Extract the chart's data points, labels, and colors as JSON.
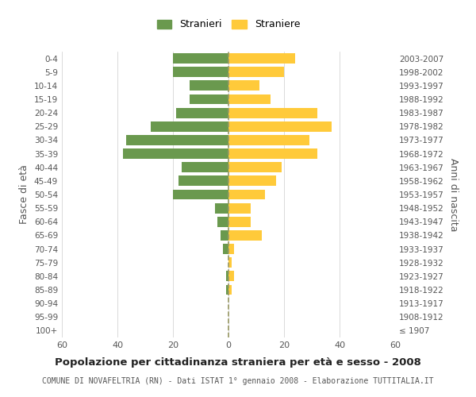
{
  "age_groups": [
    "100+",
    "95-99",
    "90-94",
    "85-89",
    "80-84",
    "75-79",
    "70-74",
    "65-69",
    "60-64",
    "55-59",
    "50-54",
    "45-49",
    "40-44",
    "35-39",
    "30-34",
    "25-29",
    "20-24",
    "15-19",
    "10-14",
    "5-9",
    "0-4"
  ],
  "birth_years": [
    "≤ 1907",
    "1908-1912",
    "1913-1917",
    "1918-1922",
    "1923-1927",
    "1928-1932",
    "1933-1937",
    "1938-1942",
    "1943-1947",
    "1948-1952",
    "1953-1957",
    "1958-1962",
    "1963-1967",
    "1968-1972",
    "1973-1977",
    "1978-1982",
    "1983-1987",
    "1988-1992",
    "1993-1997",
    "1998-2002",
    "2003-2007"
  ],
  "males": [
    0,
    0,
    0,
    1,
    1,
    0,
    2,
    3,
    4,
    5,
    20,
    18,
    17,
    38,
    37,
    28,
    19,
    14,
    14,
    20,
    20
  ],
  "females": [
    0,
    0,
    0,
    1,
    2,
    1,
    2,
    12,
    8,
    8,
    13,
    17,
    19,
    32,
    29,
    37,
    32,
    15,
    11,
    20,
    24
  ],
  "male_color": "#6a994e",
  "female_color": "#ffca3a",
  "background_color": "#ffffff",
  "grid_color": "#cccccc",
  "title": "Popolazione per cittadinanza straniera per età e sesso - 2008",
  "subtitle": "COMUNE DI NOVAFELTRIA (RN) - Dati ISTAT 1° gennaio 2008 - Elaborazione TUTTITALIA.IT",
  "ylabel_left": "Fasce di età",
  "ylabel_right": "Anni di nascita",
  "legend_stranieri": "Stranieri",
  "legend_straniere": "Straniere",
  "xlim": 60
}
